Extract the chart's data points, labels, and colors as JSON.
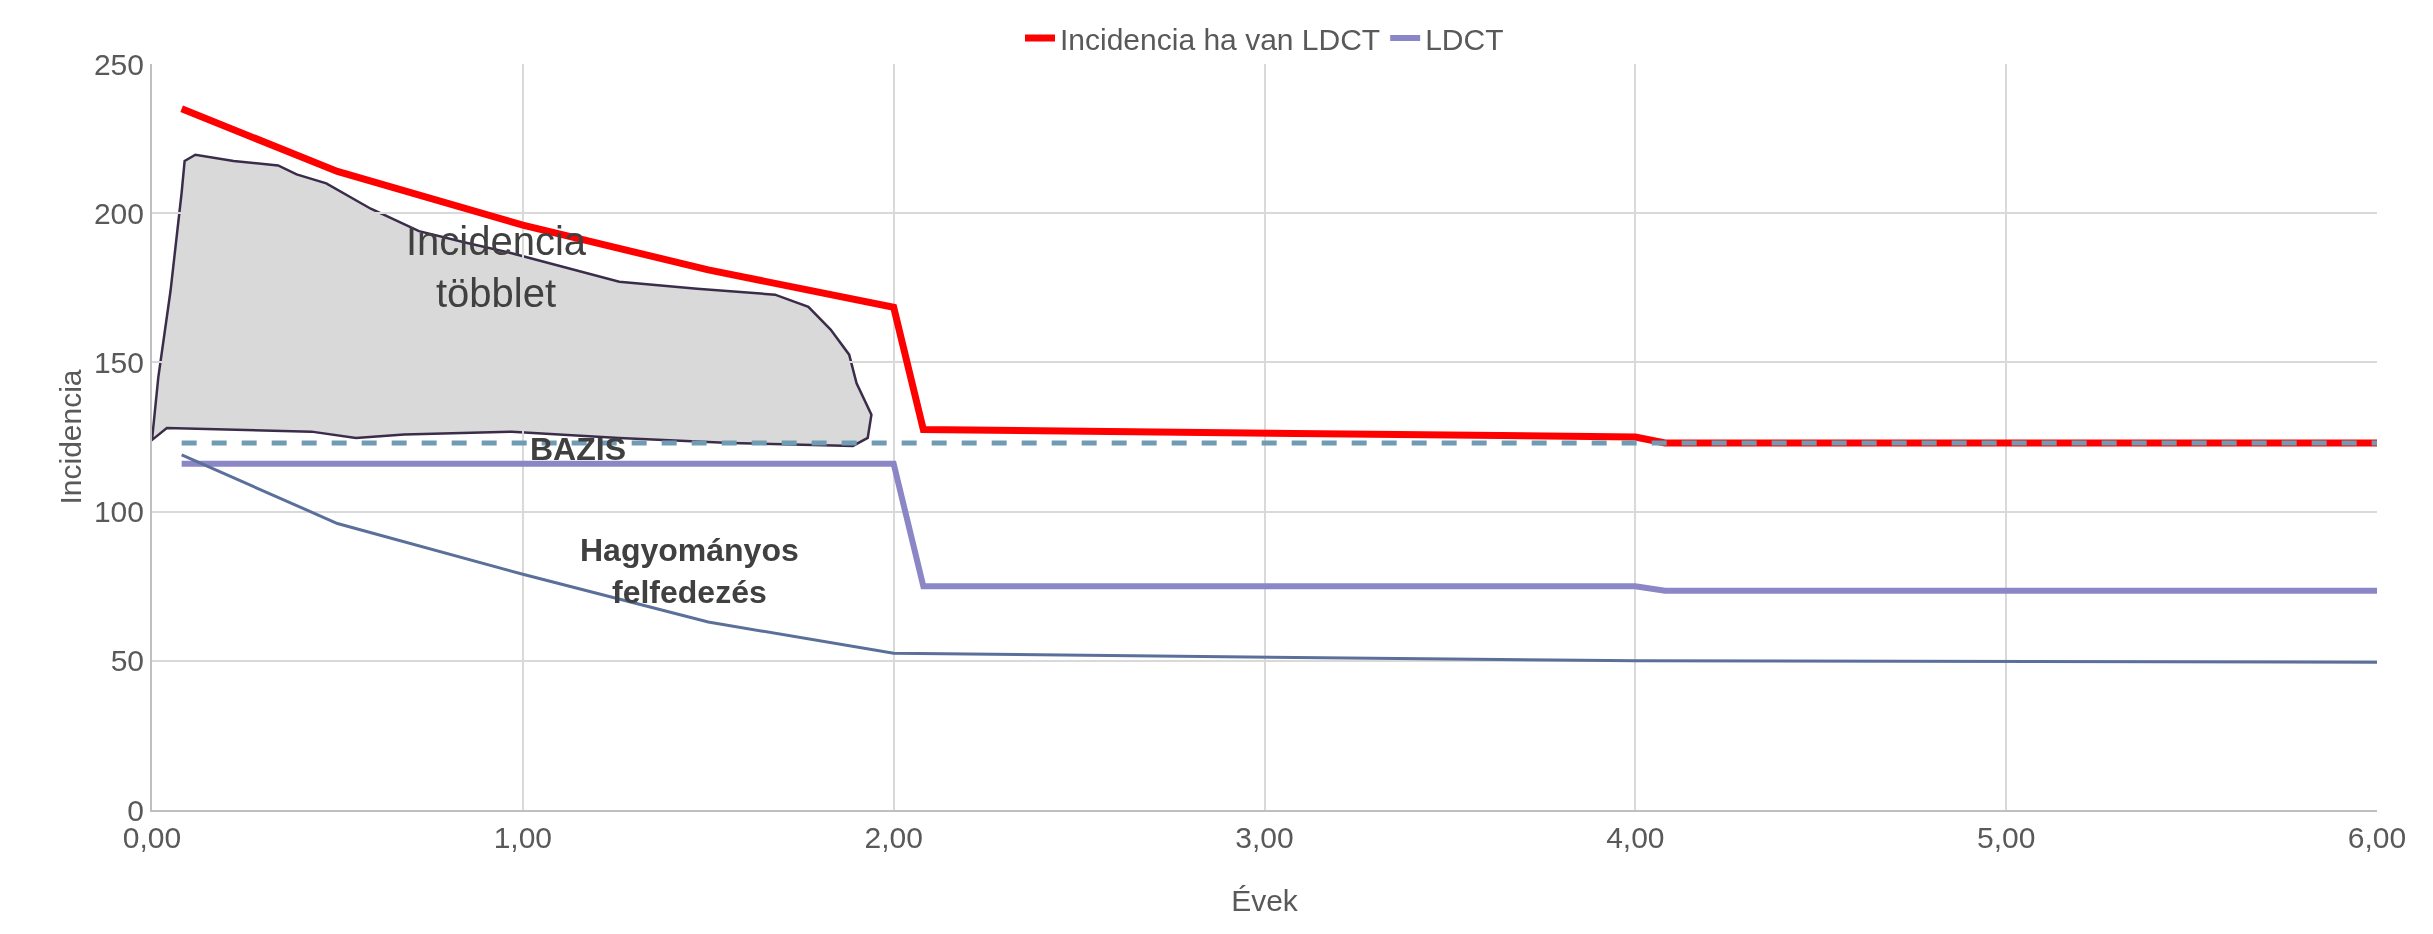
{
  "chart_data": {
    "type": "line",
    "xlabel": "Évek",
    "ylabel": "Incidencia",
    "annotations": [
      "Incidencia többlet",
      "BAZIS",
      "Hagyományos felfedezés"
    ],
    "series": [
      {
        "name": "Incidencia ha van LDCT",
        "color": "#ff0000",
        "line_style": "solid",
        "x": [
          0.08,
          0.5,
          1.0,
          1.5,
          2.0,
          2.08,
          4.0,
          4.08,
          6.0
        ],
        "values": [
          235,
          214,
          196,
          181,
          168.5,
          127.5,
          125,
          123,
          123
        ]
      },
      {
        "name": "LDCT",
        "color": "#8b86c6",
        "line_style": "solid",
        "x": [
          0.08,
          2.0,
          2.08,
          4.0,
          4.08,
          6.0
        ],
        "values": [
          116,
          116,
          75,
          75,
          73.5,
          73.5
        ]
      },
      {
        "color": "#5b6f9b",
        "line_style": "solid",
        "x": [
          0.08,
          0.5,
          1.0,
          1.5,
          2.0,
          4.0,
          6.0
        ],
        "values": [
          119,
          96,
          79,
          63,
          52.5,
          50,
          49.5
        ]
      },
      {
        "color": "#6f9bb3",
        "line_style": "dashed",
        "x": [
          0.08,
          6.0
        ],
        "values": [
          123,
          123
        ]
      }
    ],
    "xlim": [
      0,
      6
    ],
    "xticks": [
      {
        "value": 0,
        "label": "0,00"
      },
      {
        "value": 1,
        "label": "1,00"
      },
      {
        "value": 2,
        "label": "2,00"
      },
      {
        "value": 3,
        "label": "3,00"
      },
      {
        "value": 4,
        "label": "4,00"
      },
      {
        "value": 5,
        "label": "5,00"
      },
      {
        "value": 6,
        "label": "6,00"
      }
    ],
    "ylim": [
      0,
      250
    ],
    "yticks": [
      0,
      50,
      100,
      150,
      200,
      250
    ],
    "grid": true,
    "legend": "top",
    "marker": "none"
  }
}
